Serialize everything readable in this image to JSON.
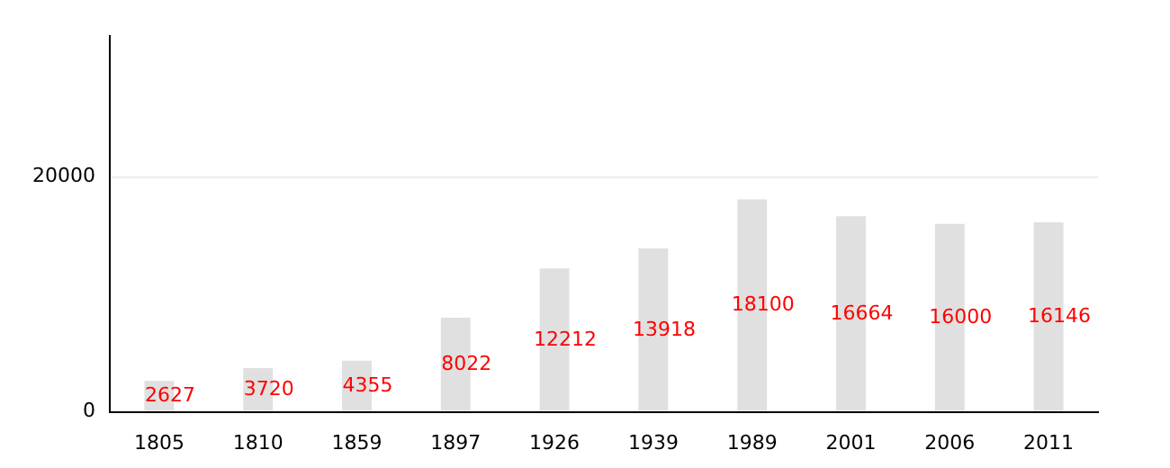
{
  "chart_data": {
    "type": "bar",
    "categories": [
      "1805",
      "1810",
      "1859",
      "1897",
      "1926",
      "1939",
      "1989",
      "2001",
      "2006",
      "2011"
    ],
    "values": [
      2627,
      3720,
      4355,
      8022,
      12212,
      13918,
      18100,
      16664,
      16000,
      16146
    ],
    "color": "#e0e0e0",
    "ylim": [
      0,
      32000
    ],
    "yticks": [
      0,
      20000
    ],
    "grid": "y",
    "data_labels": true
  }
}
